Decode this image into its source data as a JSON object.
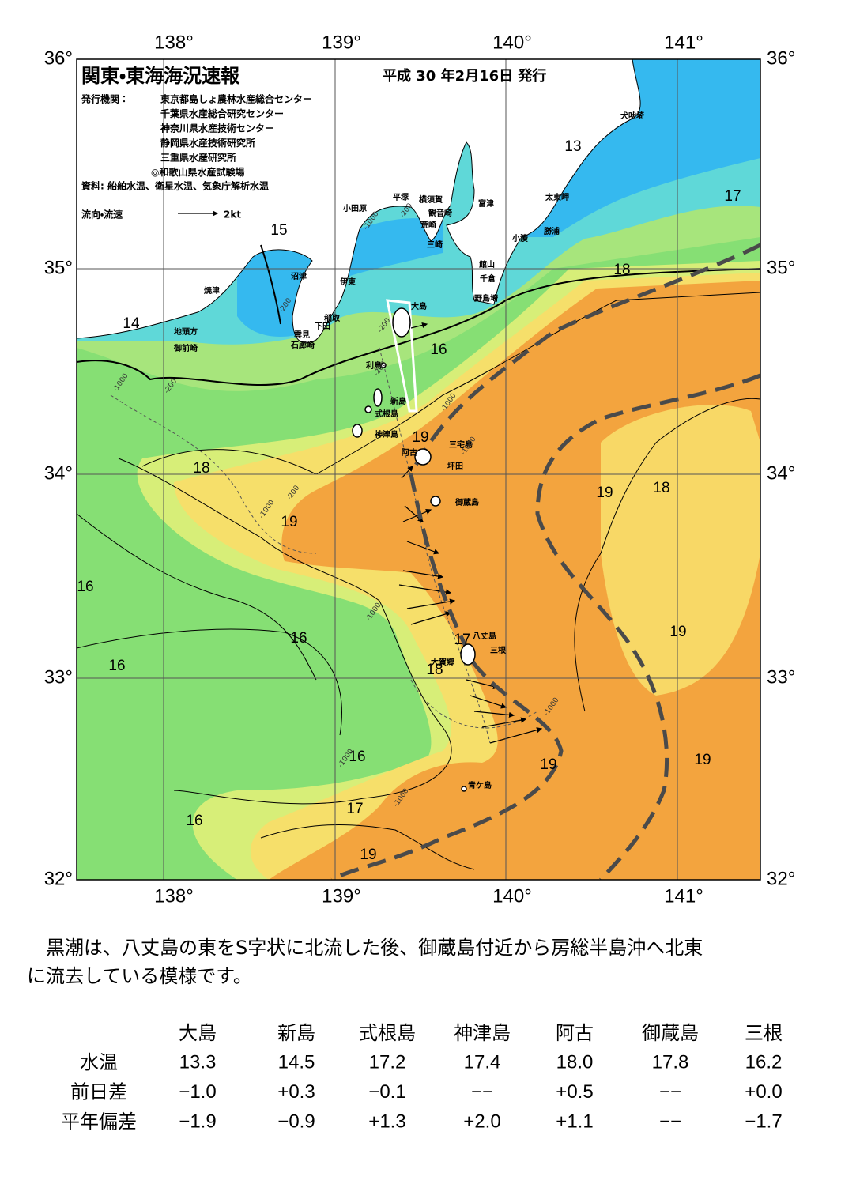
{
  "map": {
    "title": "関東・東海海況速報",
    "date": "平成 30 年2月16日 発行",
    "publisher_label": "発行機関：",
    "publishers": [
      "東京都島しょ農林水産総合センター",
      "千葉県水産総合研究センター",
      "神奈川県水産技術センター",
      "静岡県水産技術研究所",
      "三重県水産研究所",
      "◎和歌山県水産試験場"
    ],
    "sources": "資料: 船舶水温、衛星水温、気象庁解析水温",
    "legend_label": "流向・流速",
    "legend_scale": "2kt",
    "lon_labels": [
      "138°",
      "139°",
      "140°",
      "141°"
    ],
    "lat_labels": [
      "36°",
      "35°",
      "34°",
      "33°",
      "32°"
    ],
    "place_names": [
      "犬吠埼",
      "太東岬",
      "勝浦",
      "小湊",
      "富津",
      "横須賀",
      "観音崎",
      "平塚",
      "小田原",
      "荒崎",
      "三崎",
      "館山",
      "千倉",
      "野島埼",
      "沼津",
      "伊東",
      "焼津",
      "稲取",
      "下田",
      "雲見",
      "石廊崎",
      "地頭方",
      "御前崎",
      "大島",
      "利島",
      "新島",
      "式根島",
      "神津島",
      "阿古",
      "三宅島",
      "坪田",
      "御蔵島",
      "八丈島",
      "三根",
      "大賀郷",
      "青ケ島"
    ],
    "isotherm_labels": [
      13,
      17,
      15,
      18,
      14,
      16,
      19,
      18,
      19,
      19,
      18,
      16,
      16,
      17,
      18,
      16,
      19,
      16,
      19,
      19,
      17,
      16,
      19
    ],
    "depth_labels": [
      "-200",
      "-1000",
      "-200",
      "-1000",
      "-200",
      "-200",
      "-200",
      "-1000",
      "-200",
      "-1000",
      "-1000",
      "-1000",
      "-1000",
      "-1000",
      "-1000"
    ]
  },
  "summary": [
    "黒潮は、八丈島の東をS字状に北流した後、御蔵島付近から房総半島沖へ北東",
    "に流去している模様です。"
  ],
  "table": {
    "columns": [
      "大島",
      "新島",
      "式根島",
      "神津島",
      "阿古",
      "御蔵島",
      "三根"
    ],
    "rows": [
      {
        "label": "水温",
        "values": [
          "13.3",
          "14.5",
          "17.2",
          "17.4",
          "18.0",
          "17.8",
          "16.2"
        ]
      },
      {
        "label": "前日差",
        "values": [
          "−1.0",
          "+0.3",
          "−0.1",
          "−−",
          "+0.5",
          "−−",
          "+0.0"
        ]
      },
      {
        "label": "平年偏差",
        "values": [
          "−1.9",
          "−0.9",
          "+1.3",
          "+2.0",
          "+1.1",
          "−−",
          "−1.7"
        ]
      }
    ]
  }
}
